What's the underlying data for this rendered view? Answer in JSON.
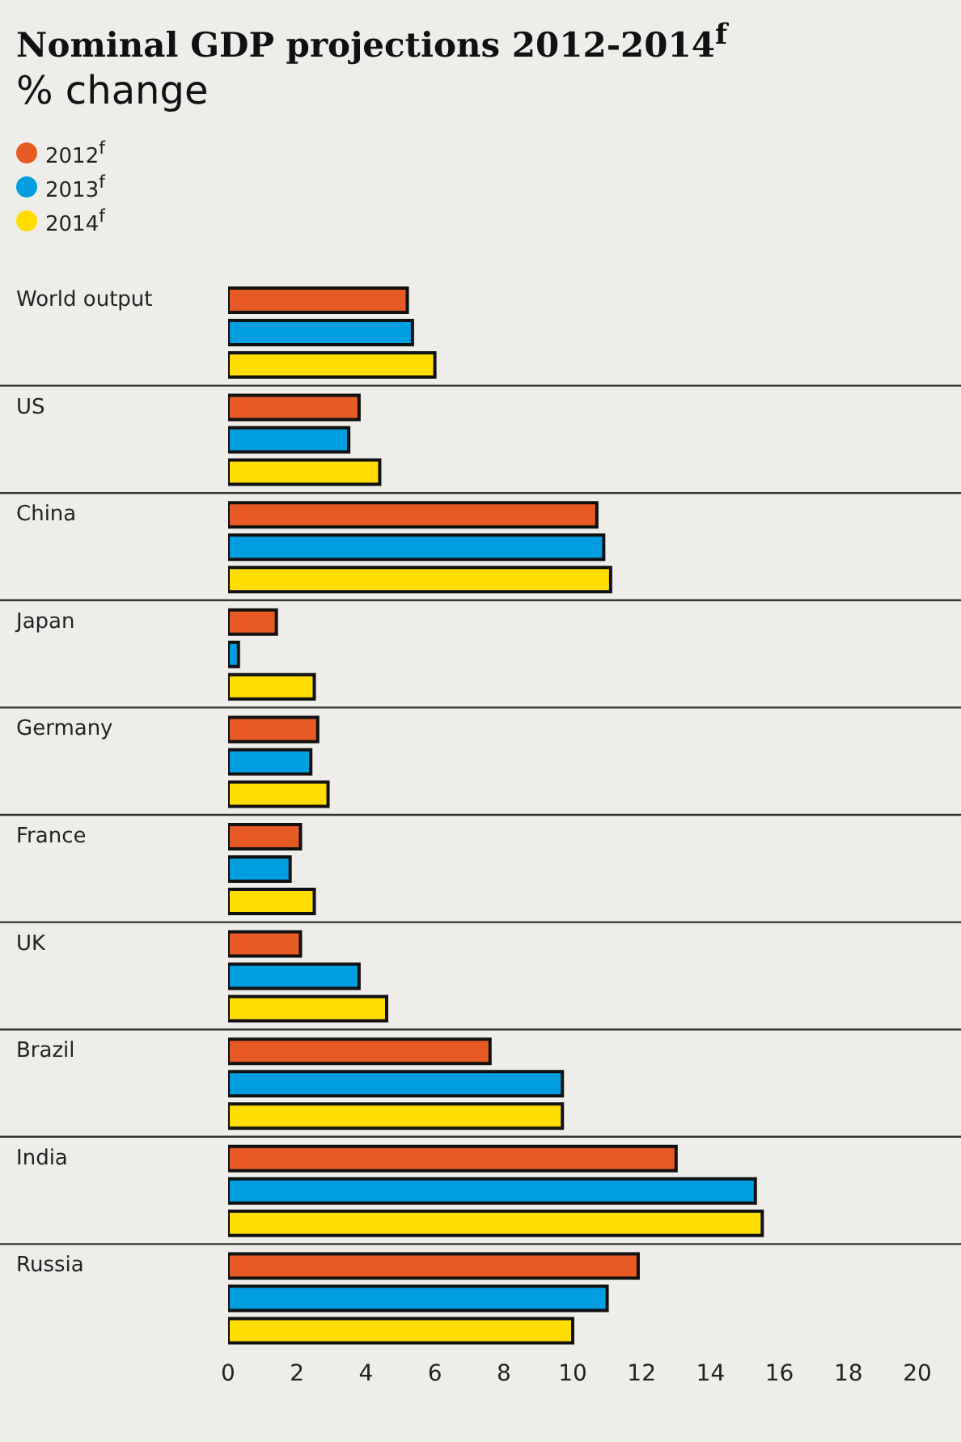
{
  "chart_data": {
    "type": "bar",
    "orientation": "horizontal",
    "title": "Nominal GDP projections 2012-2014$^{f}$",
    "subtitle": "% change",
    "categories": [
      "World output",
      "US",
      "China",
      "Japan",
      "Germany",
      "France",
      "UK",
      "Brazil",
      "India",
      "Russia"
    ],
    "series": [
      {
        "name": "2012$^{f}$",
        "color": "#e85a24",
        "values": [
          5.2,
          3.8,
          10.7,
          1.4,
          2.6,
          2.1,
          2.1,
          7.6,
          13.0,
          11.9
        ]
      },
      {
        "name": "2013$^{f}$",
        "color": "#009ee0",
        "values": [
          5.35,
          3.5,
          10.9,
          0.3,
          2.4,
          1.8,
          3.8,
          9.7,
          15.3,
          11.0
        ]
      },
      {
        "name": "2014$^{f}$",
        "color": "#ffdd00",
        "values": [
          6.0,
          4.4,
          11.1,
          2.5,
          2.9,
          2.5,
          4.6,
          9.7,
          15.5,
          10.0
        ]
      }
    ],
    "xlim": [
      0,
      20
    ],
    "xticks": [
      0,
      2,
      4,
      6,
      8,
      10,
      12,
      14,
      16,
      18,
      20
    ],
    "grid": false,
    "legend": "top left"
  }
}
